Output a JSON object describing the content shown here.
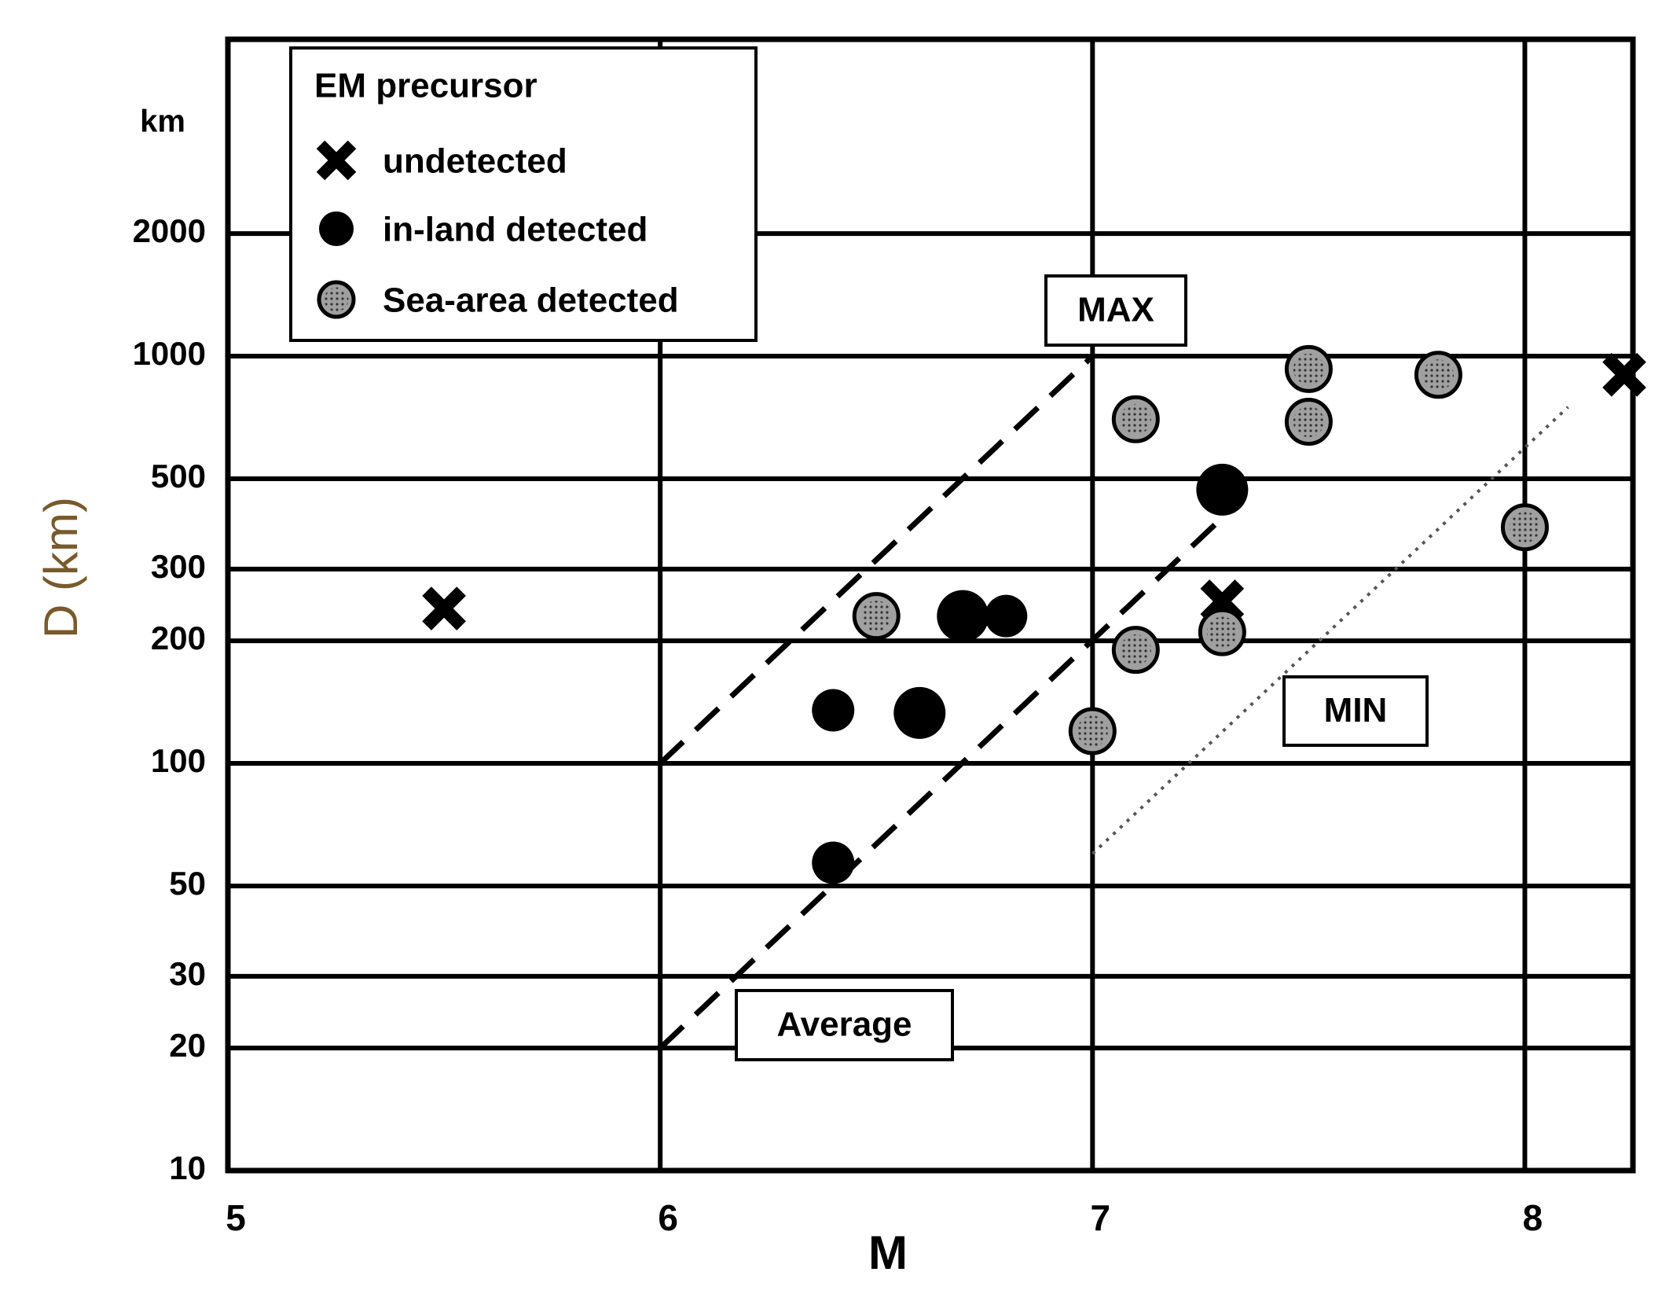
{
  "chart_data": {
    "type": "scatter",
    "y_label": "D (km)",
    "y_unit": "km",
    "x_label": "M",
    "xlim": [
      5,
      8.25
    ],
    "xticks": [
      5,
      6,
      7,
      8
    ],
    "ylim": [
      10,
      6000
    ],
    "yticks": [
      10,
      20,
      30,
      50,
      100,
      200,
      300,
      500,
      1000,
      2000
    ],
    "log_y": true,
    "grid": true,
    "legend": {
      "title": "EM precursor",
      "position": "upper left"
    },
    "series": [
      {
        "name": "undetected",
        "color": "#000000",
        "marker": "x",
        "x": [
          5.5,
          7.3,
          8.23
        ],
        "values": [
          240,
          250,
          900
        ]
      },
      {
        "name": "in-land detected",
        "color": "#000000",
        "marker": "circle",
        "x": [
          7.3,
          6.7,
          6.8,
          6.4,
          6.6,
          6.4
        ],
        "values": [
          470,
          230,
          230,
          135,
          133,
          57
        ]
      },
      {
        "name": "Sea-area detected",
        "color": "#a0a0a0",
        "marker": "dotted-circle",
        "x": [
          7.5,
          7.8,
          7.5,
          7.1,
          8.0,
          6.5,
          7.3,
          7.1,
          7.0
        ],
        "values": [
          930,
          900,
          690,
          700,
          380,
          230,
          210,
          190,
          120
        ]
      }
    ],
    "lines": [
      {
        "name": "MAX",
        "style": "dashed",
        "x": [
          6,
          7
        ],
        "values": [
          100,
          1000
        ]
      },
      {
        "name": "Average",
        "style": "dashed",
        "x": [
          6,
          7.35
        ],
        "values": [
          20,
          450
        ]
      },
      {
        "name": "MIN",
        "style": "dotted",
        "x": [
          7,
          8.1
        ],
        "values": [
          60,
          750
        ]
      }
    ]
  }
}
